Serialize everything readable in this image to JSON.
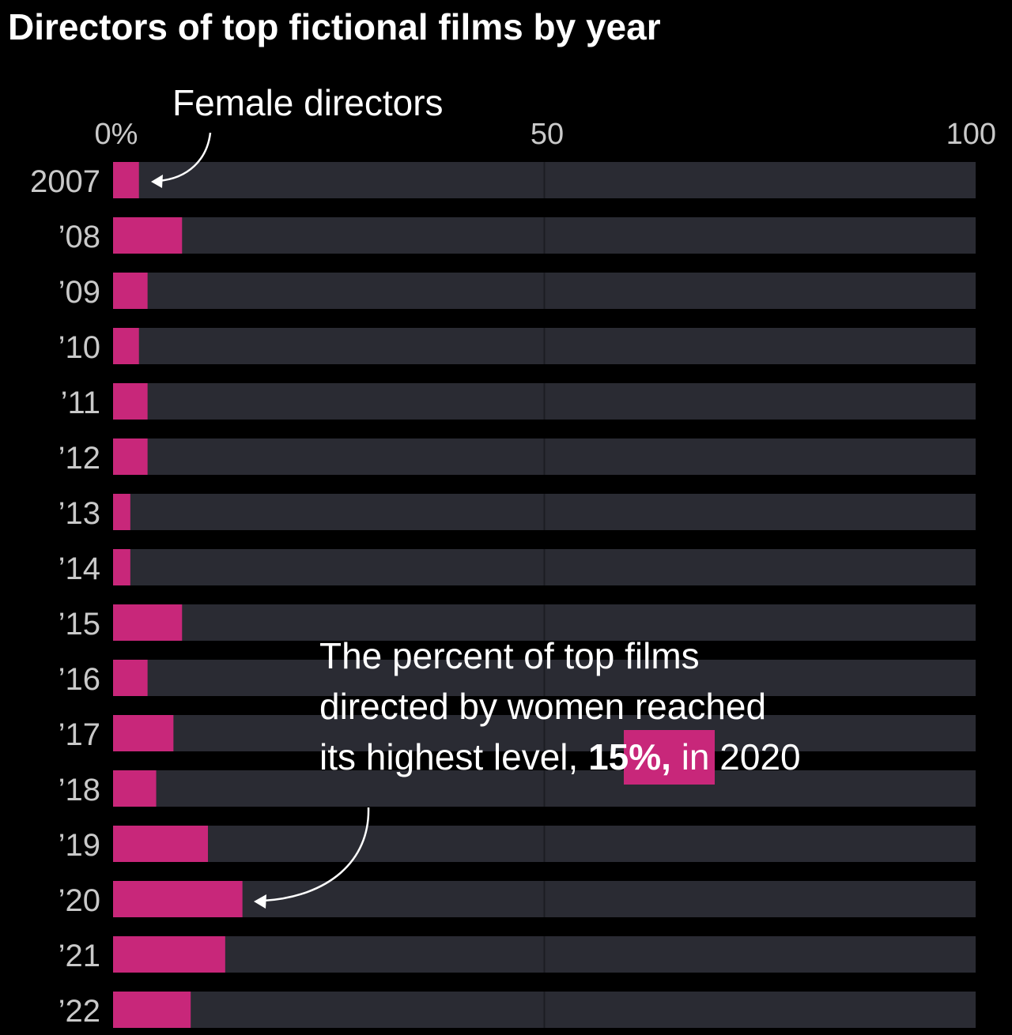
{
  "title": "Directors of top fictional films by year",
  "colors": {
    "background": "#000000",
    "track": "#2a2b33",
    "bar": "#c8277a",
    "text": "#ffffff",
    "muted": "#c9c9c9"
  },
  "legend_label": "Female directors",
  "annotation": {
    "line1": "The percent of top films",
    "line2": "directed by women reached",
    "line3_pre": "its highest level, ",
    "highlight": "15%,",
    "line3_post": " in 2020"
  },
  "chart_data": {
    "type": "bar",
    "orientation": "horizontal",
    "title": "Directors of top fictional films by year",
    "xlim": [
      0,
      100
    ],
    "x_ticks": [
      "0%",
      "50",
      "100"
    ],
    "categories": [
      "2007",
      "’08",
      "’09",
      "’10",
      "’11",
      "’12",
      "’13",
      "’14",
      "’15",
      "’16",
      "’17",
      "’18",
      "’19",
      "’20",
      "’21",
      "’22"
    ],
    "series": [
      {
        "name": "Female directors",
        "values": [
          3,
          8,
          4,
          3,
          4,
          4,
          2,
          2,
          8,
          4,
          7,
          5,
          11,
          15,
          13,
          9
        ]
      }
    ]
  }
}
